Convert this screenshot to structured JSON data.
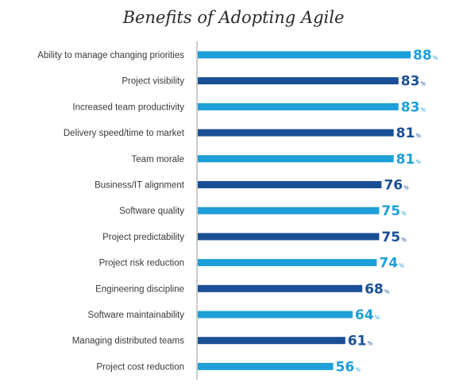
{
  "chart_data": {
    "type": "bar",
    "orientation": "horizontal",
    "title": "Benefits of Adopting Agile",
    "unit": "%",
    "categories": [
      "Ability to manage changing priorities",
      "Project visibility",
      "Increased team productivity",
      "Delivery speed/time to market",
      "Team morale",
      "Business/IT alignment",
      "Software quality",
      "Project predictability",
      "Project risk reduction",
      "Engineering discipline",
      "Software maintainability",
      "Managing distributed teams",
      "Project cost reduction"
    ],
    "values": [
      88,
      83,
      83,
      81,
      81,
      76,
      75,
      75,
      74,
      68,
      64,
      61,
      56
    ],
    "xlim": [
      0,
      88
    ],
    "grid": false,
    "legend": "none",
    "colors": {
      "light": "#1d9fd8",
      "dark": "#1a4f96",
      "axis": "#9a9a9a"
    },
    "bar_colors": [
      "light",
      "dark",
      "light",
      "dark",
      "light",
      "dark",
      "light",
      "dark",
      "light",
      "dark",
      "light",
      "dark",
      "light"
    ]
  }
}
